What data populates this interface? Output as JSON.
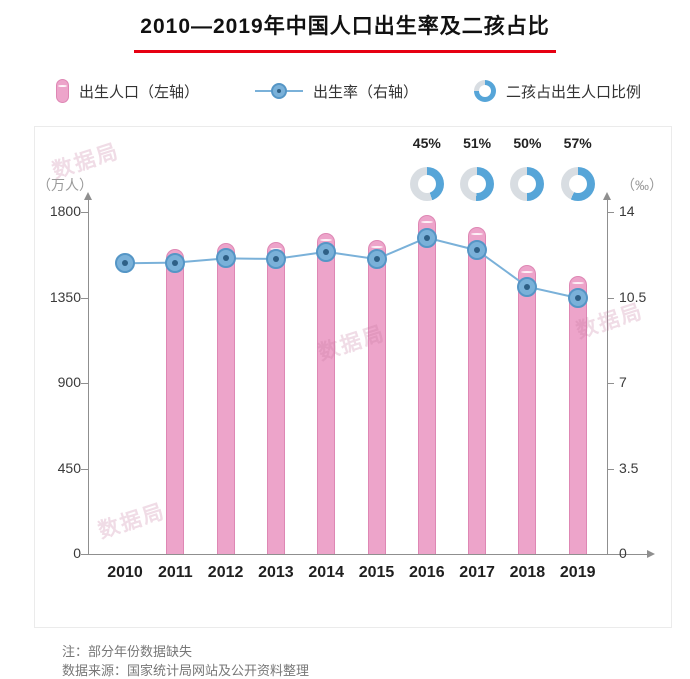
{
  "title": "2010—2019年中国人口出生率及二孩占比",
  "legend": {
    "births": "出生人口（左轴）",
    "rate": "出生率（右轴）",
    "second_child": "二孩占出生人口比例"
  },
  "notes": {
    "line1": "注：部分年份数据缺失",
    "line2": "数据来源：国家统计局网站及公开资料整理"
  },
  "watermark": {
    "text": "数据局"
  },
  "colors": {
    "bar_pink": "#eda4ca",
    "bar_pink_border": "#de87b4",
    "line_blue": "#7ab1d9",
    "dot_fill": "#7ab1d9",
    "dot_border": "#5596c6",
    "dot_center": "#2e6086",
    "donut_blue": "#56a5d8",
    "donut_gray": "#d8dde2",
    "accent_red": "#e60012",
    "axis_gray": "#8f8f8f"
  },
  "chart_data": {
    "type": "bar",
    "title": "2010—2019年中国人口出生率及二孩占比",
    "categories": [
      "2010",
      "2011",
      "2012",
      "2013",
      "2014",
      "2015",
      "2016",
      "2017",
      "2018",
      "2019"
    ],
    "series": [
      {
        "name": "出生人口（左轴）",
        "type": "bar",
        "axis": "left",
        "unit": "万人",
        "values": [
          null,
          1604,
          1635,
          1640,
          1687,
          1655,
          1786,
          1723,
          1523,
          1465
        ]
      },
      {
        "name": "出生率（右轴）",
        "type": "line",
        "axis": "right",
        "unit": "‰",
        "values": [
          11.9,
          11.93,
          12.1,
          12.08,
          12.37,
          12.07,
          12.95,
          12.43,
          10.94,
          10.48
        ]
      },
      {
        "name": "二孩占出生人口比例",
        "type": "donut",
        "unit": "%",
        "values": [
          null,
          null,
          null,
          null,
          null,
          null,
          45,
          51,
          50,
          57
        ]
      }
    ],
    "left_axis": {
      "label": "（万人）",
      "min": 0,
      "max": 1800,
      "ticks": [
        0,
        450,
        900,
        1350,
        1800
      ]
    },
    "right_axis": {
      "label": "（‰）",
      "min": 0,
      "max": 14,
      "ticks": [
        0,
        3.5,
        7,
        10.5,
        14
      ]
    },
    "legend_position": "top",
    "grid": false
  }
}
